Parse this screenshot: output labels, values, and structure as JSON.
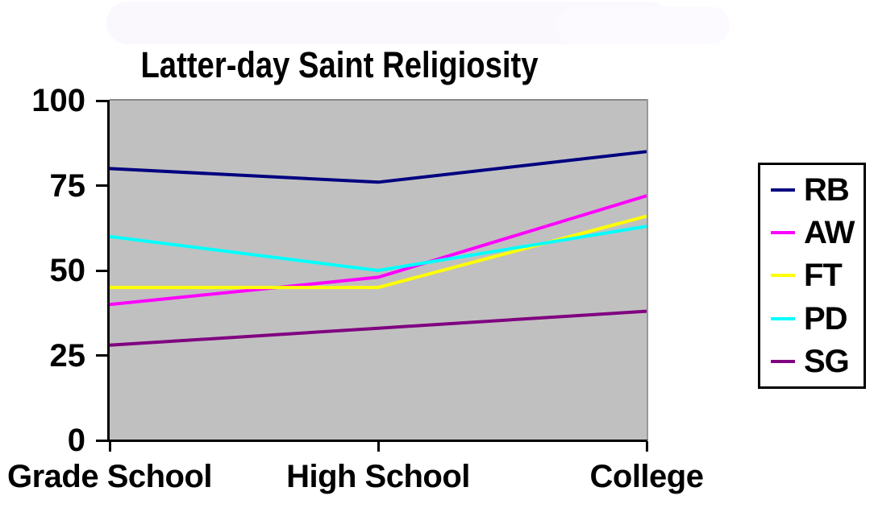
{
  "title": "Latter-day Saint Religiosity",
  "chart_data": {
    "type": "line",
    "title": "Latter-day Saint Religiosity",
    "categories": [
      "Grade School",
      "High School",
      "College"
    ],
    "series": [
      {
        "name": "RB",
        "color": "#000080",
        "values": [
          80,
          76,
          85
        ]
      },
      {
        "name": "AW",
        "color": "#FF00FF",
        "values": [
          40,
          48,
          72
        ]
      },
      {
        "name": "FT",
        "color": "#FFFF00",
        "values": [
          45,
          45,
          66
        ]
      },
      {
        "name": "PD",
        "color": "#00FFFF",
        "values": [
          60,
          50,
          63
        ]
      },
      {
        "name": "SG",
        "color": "#800080",
        "values": [
          28,
          33,
          38
        ]
      }
    ],
    "ylim": [
      0,
      100
    ],
    "y_ticks": [
      100,
      75,
      50,
      25,
      0
    ],
    "grid": false,
    "legend_position": "right",
    "plot_bg_color": "#C0C0C0",
    "axis_color": "#000000",
    "xlabel": "",
    "ylabel": ""
  }
}
